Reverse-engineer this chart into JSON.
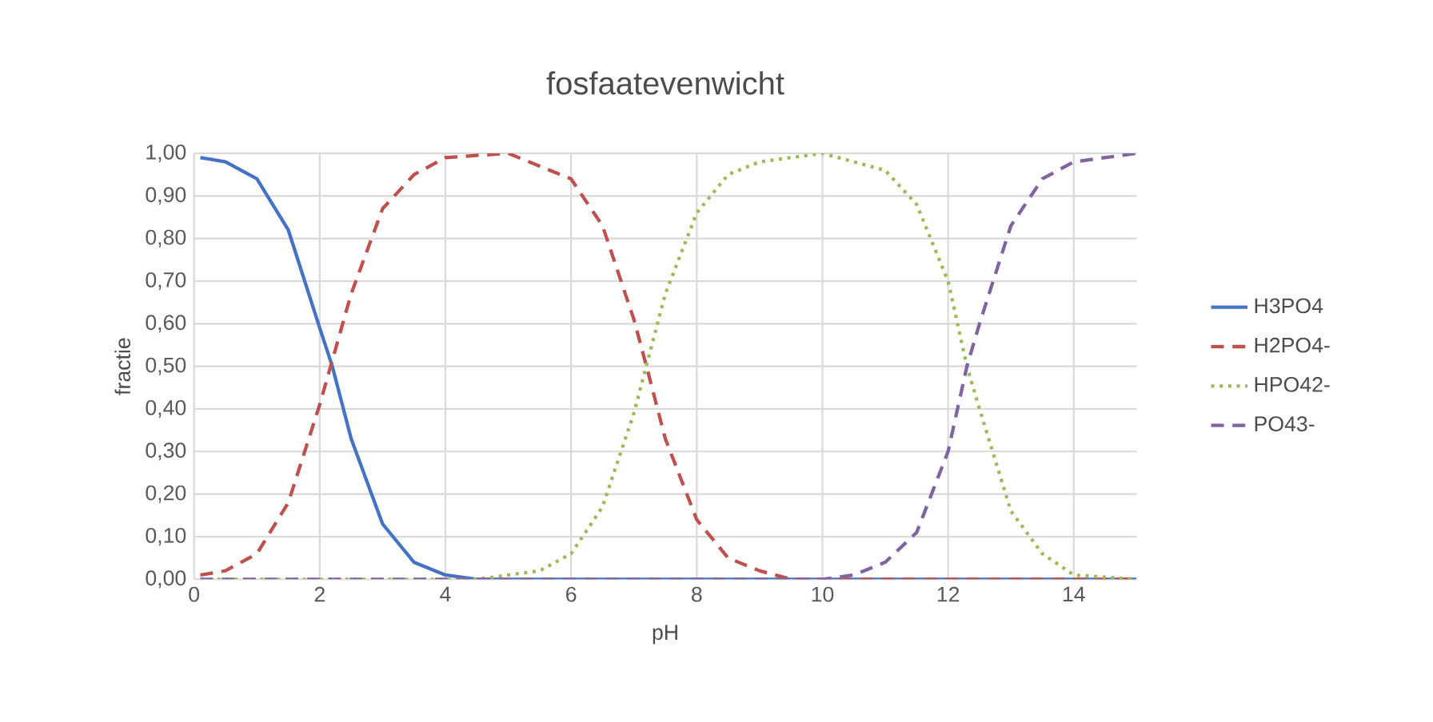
{
  "chart_data": {
    "type": "line",
    "title": "fosfaatevenwicht",
    "xlabel": "pH",
    "ylabel": "fractie",
    "xlim": [
      0,
      15
    ],
    "xticks": [
      0,
      2,
      4,
      6,
      8,
      10,
      12,
      14
    ],
    "ylim": [
      0,
      1
    ],
    "yticks": [
      {
        "value": 0,
        "label": "0,00"
      },
      {
        "value": 0.1,
        "label": "0,10"
      },
      {
        "value": 0.2,
        "label": "0,20"
      },
      {
        "value": 0.3,
        "label": "0,30"
      },
      {
        "value": 0.4,
        "label": "0,40"
      },
      {
        "value": 0.5,
        "label": "0,50"
      },
      {
        "value": 0.6,
        "label": "0,60"
      },
      {
        "value": 0.7,
        "label": "0,70"
      },
      {
        "value": 0.8,
        "label": "0,80"
      },
      {
        "value": 0.9,
        "label": "0,90"
      },
      {
        "value": 1,
        "label": "1,00"
      }
    ],
    "grid": true,
    "legend": "right",
    "marker": "none",
    "series": [
      {
        "name": "H3PO4",
        "color": "#4472c4",
        "line_style": "solid",
        "x": [
          0.1,
          0.5,
          1,
          1.5,
          2,
          2.2,
          2.5,
          3,
          3.5,
          4,
          4.5,
          15
        ],
        "values": [
          0.99,
          0.98,
          0.94,
          0.82,
          0.59,
          0.5,
          0.33,
          0.13,
          0.04,
          0.01,
          0,
          0
        ]
      },
      {
        "name": "H2PO4-",
        "color": "#c0504d",
        "line_style": "dashed",
        "x": [
          0.1,
          0.5,
          1,
          1.5,
          2,
          2.5,
          3,
          3.5,
          4,
          5,
          6,
          6.5,
          7,
          7.2,
          7.5,
          8,
          8.5,
          9,
          9.5,
          15
        ],
        "values": [
          0.01,
          0.02,
          0.06,
          0.18,
          0.41,
          0.67,
          0.87,
          0.95,
          0.99,
          1,
          0.94,
          0.83,
          0.61,
          0.5,
          0.33,
          0.14,
          0.05,
          0.02,
          0,
          0
        ]
      },
      {
        "name": "HPO42-",
        "color": "#9bbb59",
        "line_style": "dotted",
        "x": [
          0.1,
          4.5,
          5,
          5.5,
          6,
          6.5,
          7,
          7.5,
          8,
          8.5,
          9,
          10,
          11,
          11.5,
          12,
          12.3,
          12.5,
          13,
          13.5,
          14,
          15
        ],
        "values": [
          0,
          0,
          0.01,
          0.02,
          0.06,
          0.17,
          0.39,
          0.67,
          0.86,
          0.95,
          0.98,
          1,
          0.96,
          0.88,
          0.7,
          0.5,
          0.4,
          0.16,
          0.06,
          0.01,
          0
        ]
      },
      {
        "name": "PO43-",
        "color": "#8064a2",
        "line_style": "dashed",
        "x": [
          0.1,
          10,
          10.5,
          11,
          11.5,
          12,
          12.3,
          12.5,
          13,
          13.5,
          14,
          15
        ],
        "values": [
          0,
          0,
          0.01,
          0.04,
          0.11,
          0.3,
          0.5,
          0.6,
          0.83,
          0.94,
          0.98,
          1
        ]
      }
    ]
  }
}
